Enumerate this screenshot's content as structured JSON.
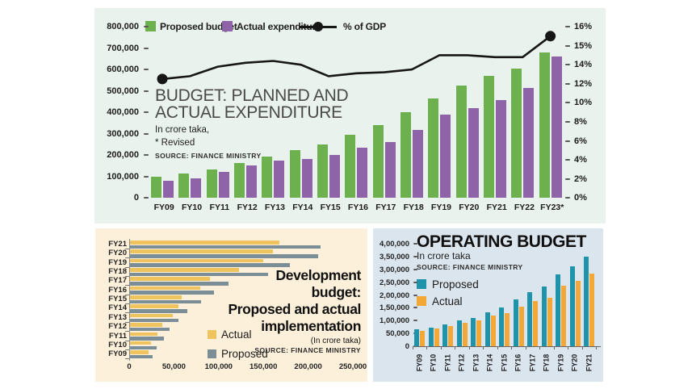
{
  "colors": {
    "top_panel_bg": "#e9f2ec",
    "dev_panel_bg": "#fcf0da",
    "op_panel_bg": "#dbe5ee",
    "proposed_green": "#6cb14e",
    "actual_purple": "#8e63a7",
    "gdp_line_black": "#161616",
    "dev_actual_yellow": "#efc35d",
    "dev_proposed_slate": "#7b8e98",
    "op_proposed_teal": "#1e93aa",
    "op_actual_orange": "#f2a737"
  },
  "chart_data": [
    {
      "type": "bar+line",
      "title": "BUDGET: PLANNED AND ACTUAL EXPENDITURE",
      "title_lines": [
        "BUDGET: PLANNED AND",
        "ACTUAL EXPENDITURE"
      ],
      "subtitle": "In crore taka,",
      "note": "* Revised",
      "source": "SOURCE: FINANCE MINISTRY",
      "categories": [
        "FY09",
        "FY10",
        "FY11",
        "FY12",
        "FY13",
        "FY14",
        "FY15",
        "FY16",
        "FY17",
        "FY18",
        "FY19",
        "FY20",
        "FY21",
        "FY22",
        "FY23*"
      ],
      "series": [
        {
          "name": "Proposed budget",
          "color": "#6cb14e",
          "values": [
            99962,
            113819,
            132170,
            163589,
            191738,
            222491,
            250506,
            295100,
            340605,
            400266,
            464573,
            523190,
            568000,
            603681,
            678064
          ]
        },
        {
          "name": "Actual expenditure",
          "color": "#8e63a7",
          "values": [
            80000,
            92000,
            121000,
            150000,
            175000,
            180000,
            200000,
            235000,
            262000,
            318000,
            388000,
            418000,
            457000,
            512000,
            660507
          ]
        }
      ],
      "line_series": {
        "name": "% of GDP",
        "color": "#161616",
        "axis": "right",
        "values": [
          12.5,
          12.8,
          13.8,
          14.1,
          14.2,
          14.0,
          12.8,
          13.1,
          13.2,
          13.5,
          14.5,
          14.5,
          14.4,
          14.4,
          15.5
        ]
      },
      "left_axis_ticks": [
        "800,000",
        "700,000",
        "600,000",
        "500,000",
        "400,000",
        "300,000",
        "200,000",
        "100,000",
        "0"
      ],
      "right_axis_ticks": [
        "16%",
        "15%",
        "14%",
        "12%",
        "10%",
        "8%",
        "6%",
        "4%",
        "2%",
        "0%"
      ],
      "ylim_left": [
        0,
        800000
      ],
      "grid": false,
      "legend_position": "top"
    },
    {
      "type": "horizontal-bar",
      "title": "Development budget: Proposed and actual implementation",
      "title_lines": [
        "Development",
        "budget:",
        "Proposed and actual",
        "implementation"
      ],
      "unit": "(In crore taka)",
      "source": "SOURCE: FINANCE MINISTRY",
      "categories": [
        "FY21",
        "FY20",
        "FY19",
        "FY18",
        "FY17",
        "FY16",
        "FY15",
        "FY14",
        "FY13",
        "FY12",
        "FY11",
        "FY10",
        "FY09"
      ],
      "series": [
        {
          "name": "Actual",
          "color": "#efc35d",
          "values": [
            168000,
            161000,
            150000,
            123000,
            90000,
            79000,
            59000,
            55000,
            49000,
            37000,
            32000,
            24000,
            22000
          ]
        },
        {
          "name": "Proposed",
          "color": "#7b8e98",
          "values": [
            214000,
            211000,
            180000,
            155000,
            111000,
            95000,
            80000,
            65000,
            55000,
            45000,
            39000,
            31000,
            26000
          ]
        }
      ],
      "x_axis_ticks": [
        "0",
        "50,000",
        "100,000",
        "150,000",
        "200,000",
        "250,000"
      ],
      "xlim": [
        0,
        250000
      ],
      "grid": false,
      "legend_position": "center"
    },
    {
      "type": "bar",
      "title": "OPERATING BUDGET",
      "subtitle": "In crore taka",
      "source": "SOURCE: FINANCE MINISTRY",
      "categories": [
        "FY09",
        "FY10",
        "FY11",
        "FY12",
        "FY13",
        "FY14",
        "FY15",
        "FY16",
        "FY17",
        "FY18",
        "FY19",
        "FY20",
        "FY21"
      ],
      "series": [
        {
          "name": "Proposed",
          "color": "#1e93aa",
          "values": [
            65000,
            74000,
            84000,
            101000,
            110000,
            132000,
            151000,
            183000,
            212000,
            234000,
            280000,
            311000,
            351000
          ]
        },
        {
          "name": "Actual",
          "color": "#f2a737",
          "values": [
            61000,
            69000,
            79000,
            92000,
            101000,
            120000,
            128000,
            154000,
            175000,
            189000,
            236000,
            255000,
            283000
          ]
        }
      ],
      "y_axis_ticks": [
        "4,00,000",
        "3,50,000",
        "3,00,000",
        "2,50,000",
        "2,00,000",
        "1,50,000",
        "1,00,000",
        "50,000",
        "0"
      ],
      "ylim": [
        0,
        400000
      ],
      "grid": false,
      "legend_position": "left"
    }
  ]
}
